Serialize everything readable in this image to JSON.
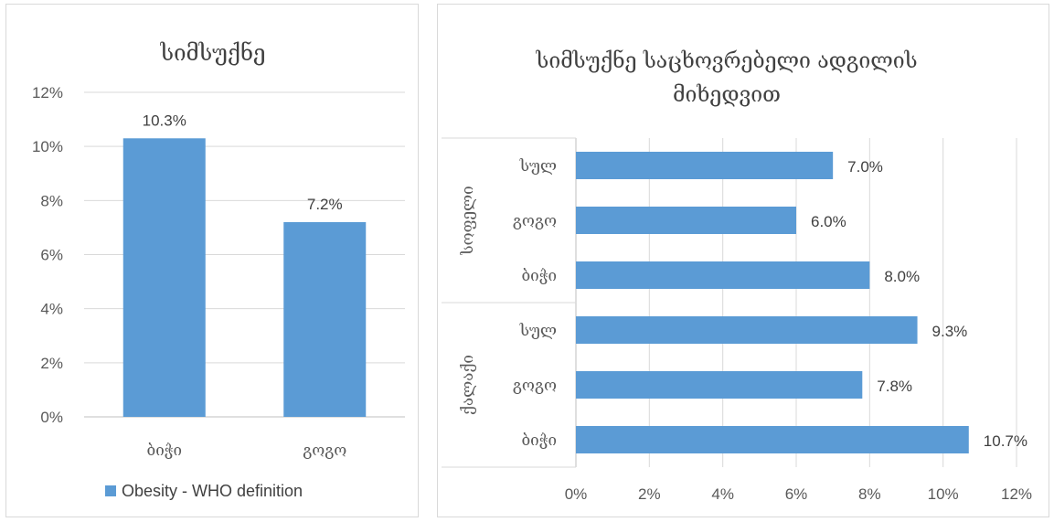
{
  "colors": {
    "bar": "#5b9bd5",
    "grid": "#d9d9d9",
    "axis": "#bfbfbf",
    "text": "#404040"
  },
  "chart_data": [
    {
      "type": "bar",
      "title": "სიმსუქნე",
      "categories": [
        "ბიჭი",
        "გოგო"
      ],
      "series": [
        {
          "name": "Obesity - WHO definition",
          "values": [
            10.3,
            7.2
          ]
        }
      ],
      "data_labels": [
        "10.3%",
        "7.2%"
      ],
      "ylim": [
        0,
        12
      ],
      "yticks": [
        "0%",
        "2%",
        "4%",
        "6%",
        "8%",
        "10%",
        "12%"
      ],
      "grid": true,
      "legend": "bottom"
    },
    {
      "type": "bar",
      "orientation": "horizontal",
      "title": [
        "სიმსუქნე საცხოვრებელი ადგილის",
        "მიხედვით"
      ],
      "groups": [
        {
          "name": "სოფელი",
          "categories": [
            "სულ",
            "გოგო",
            "ბიჭი"
          ],
          "values": [
            7.0,
            6.0,
            8.0
          ],
          "data_labels": [
            "7.0%",
            "6.0%",
            "8.0%"
          ]
        },
        {
          "name": "ქალაქი",
          "categories": [
            "სულ",
            "გოგო",
            "ბიჭი"
          ],
          "values": [
            9.3,
            7.8,
            10.7
          ],
          "data_labels": [
            "9.3%",
            "7.8%",
            "10.7%"
          ]
        }
      ],
      "xlim": [
        0,
        12
      ],
      "xticks": [
        "0%",
        "2%",
        "4%",
        "6%",
        "8%",
        "10%",
        "12%"
      ],
      "grid": true
    }
  ]
}
